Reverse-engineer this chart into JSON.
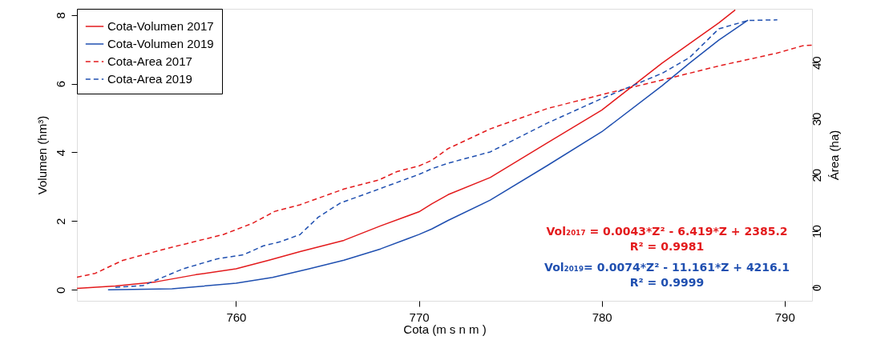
{
  "chart_data": {
    "type": "line",
    "xlabel": "Cota (m s n m )",
    "ylabel": "Volumen (hm³)",
    "y2label": "Área (ha)",
    "xlim": [
      751.3,
      791.5
    ],
    "xticks": [
      760,
      770,
      780,
      790
    ],
    "ylim": [
      -0.32,
      8.18
    ],
    "yticks": [
      0,
      2,
      4,
      6,
      8
    ],
    "y2lim": [
      -2.39,
      49.57
    ],
    "y2ticks": [
      0,
      10,
      20,
      30,
      40
    ],
    "grid": false,
    "legend": "top left",
    "series": [
      {
        "name": "Cota-Volumen 2017",
        "color": "#e31a1c",
        "line_style": "solid",
        "x": [
          751.3,
          753.4,
          755.6,
          757.8,
          760,
          761.8,
          763.5,
          765.9,
          767.9,
          770,
          770.7,
          771.6,
          773.9,
          777.0,
          780,
          783.3,
          786.4,
          787.3
        ],
        "values": [
          0.04,
          0.11,
          0.23,
          0.44,
          0.61,
          0.86,
          1.11,
          1.44,
          1.86,
          2.27,
          2.5,
          2.77,
          3.27,
          4.27,
          5.23,
          6.6,
          7.77,
          8.15
        ]
      },
      {
        "name": "Cota-Volumen 2019",
        "color": "#1f4fb0",
        "line_style": "solid",
        "x": [
          753.0,
          756.5,
          760,
          762.0,
          764.0,
          765.9,
          767.9,
          770,
          770.7,
          771.6,
          773.9,
          777.0,
          780,
          783.3,
          784.8,
          786.4,
          788.0
        ],
        "values": [
          0,
          0.03,
          0.19,
          0.36,
          0.61,
          0.86,
          1.19,
          1.61,
          1.77,
          2.02,
          2.61,
          3.61,
          4.6,
          5.94,
          6.6,
          7.27,
          7.85
        ]
      },
      {
        "name": "Cota-Area 2017",
        "color": "#e31a1c",
        "line_style": "dashed",
        "axis": "y2",
        "x": [
          751.3,
          752.3,
          753.8,
          756.2,
          759.3,
          760.9,
          762.1,
          763.5,
          765.9,
          767.8,
          768.8,
          770,
          770.7,
          771.6,
          773.9,
          777.0,
          780,
          783.3,
          786.4,
          789.6,
          791.0,
          791.5
        ],
        "values": [
          1.8,
          2.5,
          4.8,
          6.9,
          9.4,
          11.4,
          13.5,
          14.7,
          17.5,
          19.1,
          20.6,
          21.6,
          22.6,
          24.7,
          28.2,
          31.8,
          34.3,
          36.9,
          39.4,
          41.7,
          43.0,
          43.1
        ]
      },
      {
        "name": "Cota-Area 2019",
        "color": "#1f4fb0",
        "line_style": "dashed",
        "axis": "y2",
        "x": [
          753.4,
          754.9,
          757.1,
          759.0,
          760.4,
          761.5,
          762.4,
          763.5,
          764.5,
          765.7,
          767.4,
          770,
          770.7,
          771.6,
          773.9,
          777.0,
          780,
          783.3,
          784.8,
          786.4,
          788.0,
          789.6
        ],
        "values": [
          0,
          0.3,
          3.3,
          5.1,
          5.8,
          7.4,
          8.1,
          9.4,
          12.5,
          15.0,
          17.0,
          20.1,
          21.1,
          22.1,
          24.1,
          29.2,
          33.6,
          38.1,
          40.9,
          46.0,
          47.5,
          47.6
        ]
      }
    ],
    "annotations": [
      "Vol₂₀₁₇ = 0.0043*Z² - 6.419*Z + 2385.2",
      "R² = 0.9981",
      "Vol₂₀₁₉= 0.0074*Z² - 11.161*Z + 4216.1",
      "R² = 0.9999"
    ]
  }
}
